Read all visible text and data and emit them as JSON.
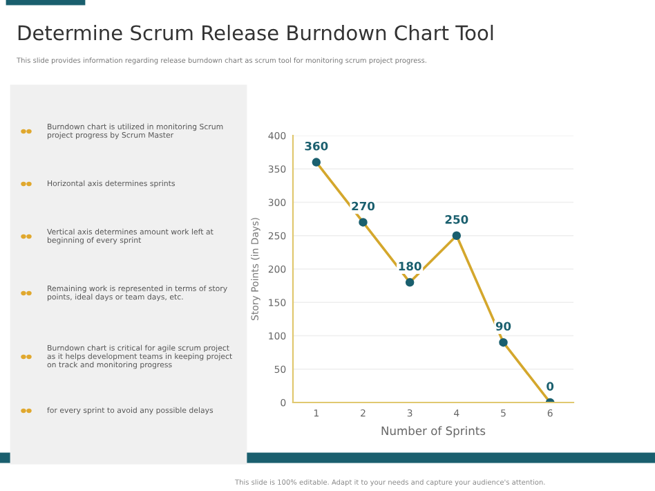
{
  "chart_data": {
    "type": "line",
    "title": "Determine Scrum Release Burndown Chart Tool",
    "subtitle": "This slide provides information regarding release burndown chart as scrum tool for monitoring scrum project progress.",
    "xlabel": "Number of Sprints",
    "ylabel": "Story Points (in Days)",
    "categories": [
      "1",
      "2",
      "3",
      "4",
      "5",
      "6"
    ],
    "series": [
      {
        "color": "#d4a72c",
        "values": [
          360,
          270,
          180,
          250,
          90,
          0
        ]
      }
    ],
    "ylim": [
      0,
      400
    ],
    "yticks": [
      0,
      50,
      100,
      150,
      200,
      250,
      300,
      350,
      400
    ],
    "grid": "y",
    "marker": "circle",
    "line_style": "solid",
    "data_labels": true,
    "legend": false,
    "annotations": [
      "Burndown chart is utilized in monitoring Scrum\nproject progress by Scrum Master",
      "Horizontal axis determines sprints",
      "Vertical axis determines amount work left at\nbeginning of every sprint",
      "Remaining work is represented in terms of story\npoints, ideal days or team days, etc.",
      "Burndown chart is critical for agile scrum project\nas it helps development teams in keeping project\non track and monitoring progress",
      "for every sprint to avoid any possible delays",
      "This slide is 100% editable. Adapt it to your needs and capture your audience's attention."
    ]
  }
}
